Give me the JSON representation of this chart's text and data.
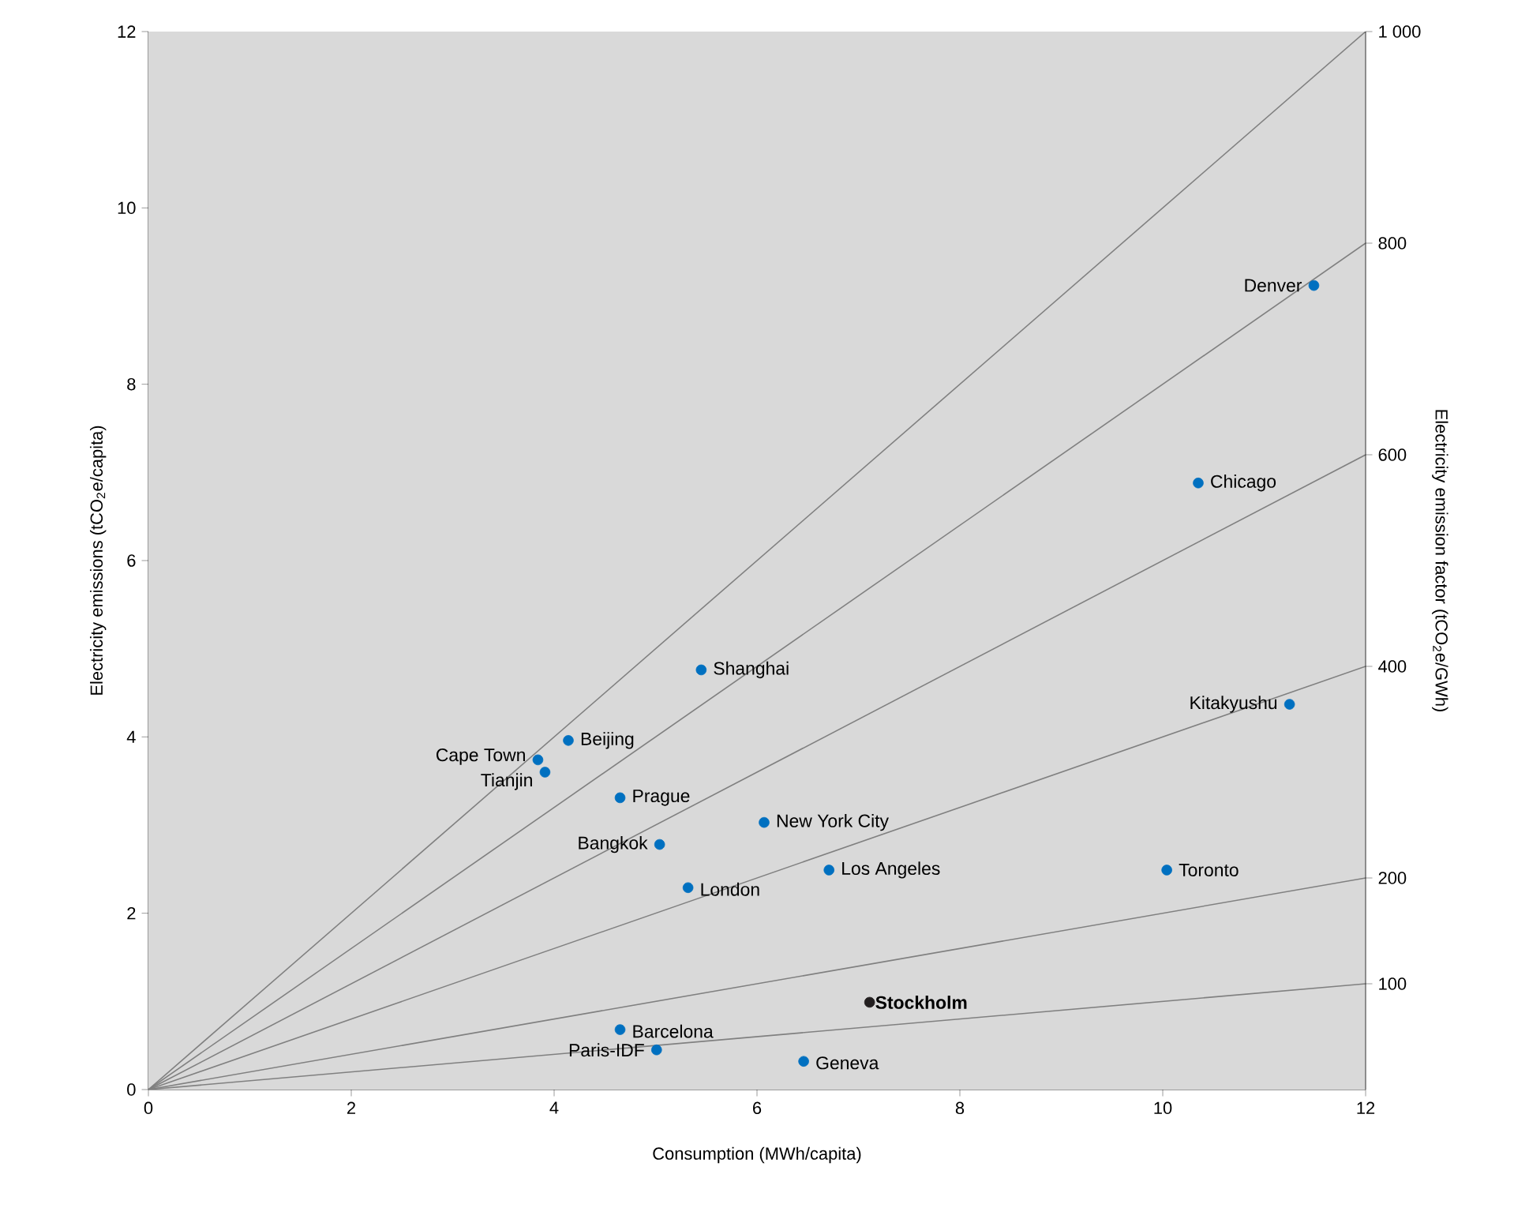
{
  "chart_data": {
    "type": "scatter",
    "xlabel": "Consumption (MWh/capita)",
    "ylabel": "Electricity emissions (tCO$_{2}$e/capita)",
    "y2label": "Electricity emission factor  (tCO$_{2}$e/GWh)",
    "xlim": [
      0,
      12
    ],
    "ylim": [
      0,
      12
    ],
    "xticks": [
      0,
      2,
      4,
      6,
      8,
      10,
      12
    ],
    "yticks": [
      0,
      2,
      4,
      6,
      8,
      10,
      12
    ],
    "y2lim": [
      0,
      1000
    ],
    "y2ticks": [
      100,
      200,
      400,
      600,
      800,
      {
        "value": 1000,
        "label": "1 000"
      }
    ],
    "grid": false,
    "series": [
      {
        "marker": "circle",
        "color": "#0070c0",
        "x": [
          11.49,
          10.35,
          5.45,
          11.25,
          4.14,
          3.84,
          3.91,
          4.65,
          6.07,
          5.04,
          6.71,
          10.04,
          5.32,
          4.65,
          5.01,
          6.46
        ],
        "values": [
          9.12,
          6.88,
          4.76,
          4.37,
          3.96,
          3.74,
          3.6,
          3.31,
          3.03,
          2.78,
          2.49,
          2.49,
          2.29,
          0.68,
          0.45,
          0.32
        ]
      },
      {
        "name": "Stockholm",
        "marker": "circle",
        "color": "#231f20",
        "x": [
          7.11
        ],
        "values": [
          0.99
        ]
      },
      {
        "type": "line",
        "marker": "none",
        "color": "#808080",
        "x": [
          0,
          12
        ],
        "values": [
          0,
          1.2
        ]
      },
      {
        "type": "line",
        "marker": "none",
        "color": "#808080",
        "x": [
          0,
          12
        ],
        "values": [
          0,
          2.4
        ]
      },
      {
        "type": "line",
        "marker": "none",
        "color": "#808080",
        "x": [
          0,
          12
        ],
        "values": [
          0,
          4.8
        ]
      },
      {
        "type": "line",
        "marker": "none",
        "color": "#808080",
        "x": [
          0,
          12
        ],
        "values": [
          0,
          7.2
        ]
      },
      {
        "type": "line",
        "marker": "none",
        "color": "#808080",
        "x": [
          0,
          12
        ],
        "values": [
          0,
          9.6
        ]
      },
      {
        "type": "line",
        "marker": "none",
        "color": "#808080",
        "x": [
          0,
          12
        ],
        "values": [
          0,
          12
        ]
      }
    ],
    "annotations": [
      {
        "text": "Denver",
        "x": 11.49,
        "y": 9.12
      },
      {
        "text": "Chicago",
        "x": 10.35,
        "y": 6.88
      },
      {
        "text": "Shanghai",
        "x": 5.45,
        "y": 4.76
      },
      {
        "text": "Kitakyushu",
        "x": 11.25,
        "y": 4.37
      },
      {
        "text": "Beijing",
        "x": 4.14,
        "y": 3.96
      },
      {
        "text": "Cape Town",
        "x": 3.84,
        "y": 3.74
      },
      {
        "text": "Tianjin",
        "x": 3.91,
        "y": 3.6
      },
      {
        "text": "Prague",
        "x": 4.65,
        "y": 3.31
      },
      {
        "text": "New York City",
        "x": 6.07,
        "y": 3.03
      },
      {
        "text": "Bangkok",
        "x": 5.04,
        "y": 2.78
      },
      {
        "text": "Los Angeles",
        "x": 6.71,
        "y": 2.49
      },
      {
        "text": "Toronto",
        "x": 10.04,
        "y": 2.49
      },
      {
        "text": "London",
        "x": 5.32,
        "y": 2.29
      },
      {
        "text": "Barcelona",
        "x": 4.65,
        "y": 0.68
      },
      {
        "text": "Paris-IDF",
        "x": 5.01,
        "y": 0.45
      },
      {
        "text": "Geneva",
        "x": 6.46,
        "y": 0.32
      }
    ]
  }
}
